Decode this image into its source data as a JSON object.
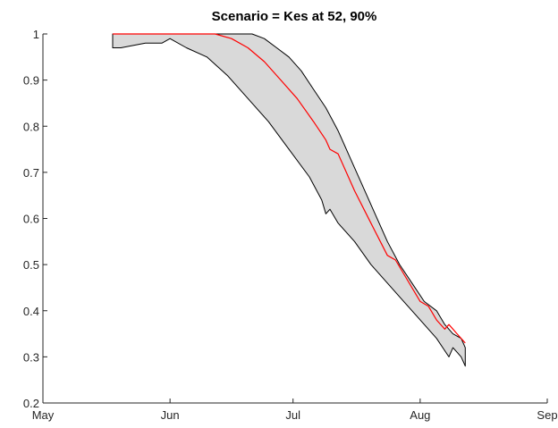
{
  "chart_data": {
    "type": "area",
    "title": "Scenario = Kes at 52, 90%",
    "xlabel": "",
    "ylabel": "",
    "xlim": [
      "2000-05-01",
      "2000-09-01"
    ],
    "ylim": [
      0.2,
      1.0
    ],
    "x_ticks": [
      "May",
      "Jun",
      "Jul",
      "Aug",
      "Sep"
    ],
    "y_ticks": [
      "0.2",
      "0.3",
      "0.4",
      "0.5",
      "0.6",
      "0.7",
      "0.8",
      "0.9",
      "1"
    ],
    "grid": false,
    "band": {
      "fill": "#d9d9d9",
      "edge_color": "#000000",
      "upper": {
        "x": [
          "2000-05-18",
          "2000-05-20",
          "2000-06-01",
          "2000-06-10",
          "2000-06-15",
          "2000-06-18",
          "2000-06-21",
          "2000-06-24",
          "2000-06-27",
          "2000-06-30",
          "2000-07-03",
          "2000-07-06",
          "2000-07-09",
          "2000-07-12",
          "2000-07-15",
          "2000-07-18",
          "2000-07-21",
          "2000-07-24",
          "2000-07-27",
          "2000-07-30",
          "2000-08-02",
          "2000-08-05",
          "2000-08-07",
          "2000-08-09",
          "2000-08-11",
          "2000-08-12"
        ],
        "y": [
          1.0,
          1.0,
          1.0,
          1.0,
          1.0,
          1.0,
          1.0,
          0.99,
          0.97,
          0.95,
          0.92,
          0.88,
          0.84,
          0.79,
          0.73,
          0.67,
          0.61,
          0.55,
          0.5,
          0.46,
          0.42,
          0.4,
          0.37,
          0.35,
          0.34,
          0.32
        ]
      },
      "lower": {
        "x": [
          "2000-05-18",
          "2000-05-20",
          "2000-05-26",
          "2000-05-30",
          "2000-06-01",
          "2000-06-05",
          "2000-06-10",
          "2000-06-15",
          "2000-06-20",
          "2000-06-25",
          "2000-06-30",
          "2000-07-05",
          "2000-07-08",
          "2000-07-09",
          "2000-07-10",
          "2000-07-12",
          "2000-07-16",
          "2000-07-20",
          "2000-07-24",
          "2000-07-28",
          "2000-08-01",
          "2000-08-05",
          "2000-08-08",
          "2000-08-09",
          "2000-08-10",
          "2000-08-11",
          "2000-08-12"
        ],
        "y": [
          0.97,
          0.97,
          0.98,
          0.98,
          0.99,
          0.97,
          0.95,
          0.91,
          0.86,
          0.81,
          0.75,
          0.69,
          0.64,
          0.61,
          0.62,
          0.59,
          0.55,
          0.5,
          0.46,
          0.42,
          0.38,
          0.34,
          0.3,
          0.32,
          0.31,
          0.3,
          0.28
        ]
      }
    },
    "series": [
      {
        "color": "#ff0000",
        "x": [
          "2000-05-18",
          "2000-06-01",
          "2000-06-12",
          "2000-06-16",
          "2000-06-20",
          "2000-06-24",
          "2000-06-28",
          "2000-07-02",
          "2000-07-06",
          "2000-07-09",
          "2000-07-10",
          "2000-07-12",
          "2000-07-16",
          "2000-07-20",
          "2000-07-24",
          "2000-07-26",
          "2000-07-28",
          "2000-08-01",
          "2000-08-03",
          "2000-08-05",
          "2000-08-07",
          "2000-08-08",
          "2000-08-10",
          "2000-08-12"
        ],
        "y": [
          1.0,
          1.0,
          1.0,
          0.99,
          0.97,
          0.94,
          0.9,
          0.86,
          0.81,
          0.77,
          0.75,
          0.74,
          0.66,
          0.59,
          0.52,
          0.51,
          0.48,
          0.42,
          0.41,
          0.38,
          0.36,
          0.37,
          0.35,
          0.33
        ]
      }
    ]
  }
}
